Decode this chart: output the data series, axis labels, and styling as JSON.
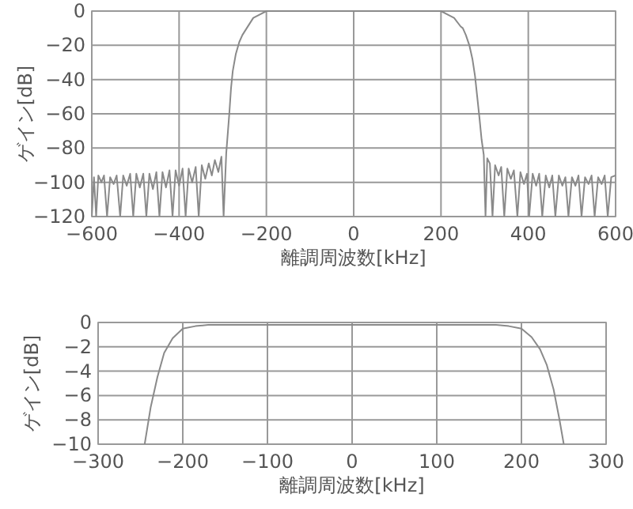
{
  "chart_data": [
    {
      "type": "line",
      "xlabel": "離調周波数[kHz]",
      "ylabel": "ゲイン[dB]",
      "xlim": [
        -600,
        600
      ],
      "ylim": [
        -120,
        0
      ],
      "xticks": [
        -600,
        -400,
        -200,
        0,
        200,
        400,
        600
      ],
      "yticks": [
        -120,
        -100,
        -80,
        -60,
        -40,
        -20,
        0
      ],
      "grid": true,
      "series": [
        {
          "color": "#8a8a8a",
          "x": [
            -600,
            -595,
            -590,
            -585,
            -578,
            -572,
            -565,
            -558,
            -550,
            -543,
            -535,
            -528,
            -520,
            -512,
            -505,
            -498,
            -490,
            -482,
            -475,
            -468,
            -460,
            -452,
            -445,
            -438,
            -430,
            -422,
            -415,
            -408,
            -400,
            -392,
            -385,
            -378,
            -370,
            -362,
            -355,
            -348,
            -340,
            -332,
            -325,
            -318,
            -310,
            -303,
            -298,
            -292,
            -288,
            -285,
            -281,
            -277,
            -270,
            -262,
            -255,
            -245,
            -230,
            -215,
            -200,
            200,
            215,
            230,
            245,
            250,
            257,
            265,
            272,
            278,
            283,
            288,
            293,
            298,
            302,
            306,
            312,
            318,
            324,
            332,
            338,
            345,
            352,
            360,
            367,
            375,
            382,
            390,
            397,
            402,
            410,
            418,
            425,
            432,
            440,
            448,
            455,
            462,
            470,
            478,
            485,
            492,
            500,
            508,
            515,
            522,
            530,
            538,
            545,
            552,
            560,
            568,
            575,
            582,
            590,
            600
          ],
          "values": [
            -120,
            -97,
            -120,
            -96,
            -100,
            -96,
            -120,
            -97,
            -101,
            -96,
            -120,
            -96,
            -102,
            -95,
            -120,
            -95,
            -103,
            -95,
            -120,
            -95,
            -104,
            -94,
            -120,
            -94,
            -103,
            -93,
            -120,
            -93,
            -102,
            -92,
            -120,
            -92,
            -100,
            -91,
            -120,
            -90,
            -98,
            -89,
            -96,
            -87,
            -94,
            -85,
            -120,
            -83,
            -70,
            -60,
            -45,
            -35,
            -25,
            -18,
            -14,
            -10,
            -4,
            -2,
            0,
            0,
            -2,
            -4,
            -9,
            -10,
            -14,
            -20,
            -28,
            -38,
            -50,
            -62,
            -75,
            -84,
            -120,
            -86,
            -89,
            -120,
            -90,
            -96,
            -91,
            -120,
            -92,
            -98,
            -93,
            -120,
            -94,
            -101,
            -95,
            -120,
            -95,
            -102,
            -95,
            -120,
            -96,
            -103,
            -96,
            -120,
            -96,
            -102,
            -97,
            -120,
            -97,
            -102,
            -96,
            -120,
            -97,
            -101,
            -96,
            -120,
            -97,
            -101,
            -96,
            -120,
            -97,
            -96
          ]
        }
      ]
    },
    {
      "type": "line",
      "xlabel": "離調周波数[kHz]",
      "ylabel": "ゲイン[dB]",
      "xlim": [
        -300,
        300
      ],
      "ylim": [
        -10,
        0
      ],
      "xticks": [
        -300,
        -200,
        -100,
        0,
        100,
        200,
        300
      ],
      "yticks": [
        -10,
        -8,
        -6,
        -4,
        -2,
        0
      ],
      "grid": true,
      "series": [
        {
          "color": "#8a8a8a",
          "x": [
            -245,
            -238,
            -230,
            -222,
            -212,
            -200,
            -185,
            -170,
            170,
            185,
            200,
            212,
            222,
            230,
            238,
            245,
            250
          ],
          "values": [
            -10,
            -7,
            -4.5,
            -2.5,
            -1.3,
            -0.5,
            -0.3,
            -0.2,
            -0.2,
            -0.3,
            -0.5,
            -1.2,
            -2.2,
            -3.5,
            -5.5,
            -8,
            -10
          ]
        }
      ]
    }
  ]
}
